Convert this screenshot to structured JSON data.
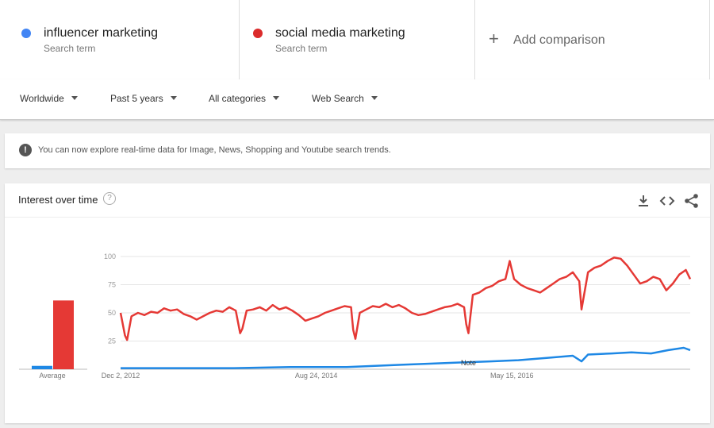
{
  "terms": [
    {
      "name": "influencer marketing",
      "sub": "Search term",
      "color": "#4285f4"
    },
    {
      "name": "social media marketing",
      "sub": "Search term",
      "color": "#db2b2b"
    }
  ],
  "add_comparison": "Add comparison",
  "filters": [
    "Worldwide",
    "Past 5 years",
    "All categories",
    "Web Search"
  ],
  "notice": "You can now explore real-time data for Image, News, Shopping and Youtube search trends.",
  "card": {
    "title": "Interest over time",
    "help": "?"
  },
  "icons": [
    "download-icon",
    "embed-icon",
    "share-icon",
    "help-icon",
    "info-icon",
    "plus-icon"
  ],
  "chart_data": {
    "type": "line",
    "ylim": [
      0,
      100
    ],
    "yticks": [
      "100",
      "75",
      "50",
      "25"
    ],
    "xticks": [
      "Dec 2, 2012",
      "Aug 24, 2014",
      "May 15, 2016"
    ],
    "average_label": "Average",
    "note_label": "Note",
    "averages": [
      {
        "name": "influencer marketing",
        "value": 3
      },
      {
        "name": "social media marketing",
        "value": 61
      }
    ],
    "series": [
      {
        "name": "social media marketing",
        "color": "#e53935",
        "points": [
          [
            "2012-12-02",
            50
          ],
          [
            "2012-12-16",
            30
          ],
          [
            "2012-12-23",
            26
          ],
          [
            "2013-01-06",
            47
          ],
          [
            "2013-01-27",
            50
          ],
          [
            "2013-02-17",
            48
          ],
          [
            "2013-03-10",
            51
          ],
          [
            "2013-03-31",
            50
          ],
          [
            "2013-04-21",
            54
          ],
          [
            "2013-05-12",
            52
          ],
          [
            "2013-06-02",
            53
          ],
          [
            "2013-06-23",
            49
          ],
          [
            "2013-07-14",
            47
          ],
          [
            "2013-08-04",
            44
          ],
          [
            "2013-08-25",
            47
          ],
          [
            "2013-09-15",
            50
          ],
          [
            "2013-10-06",
            52
          ],
          [
            "2013-10-27",
            51
          ],
          [
            "2013-11-17",
            55
          ],
          [
            "2013-12-08",
            52
          ],
          [
            "2013-12-22",
            32
          ],
          [
            "2013-12-29",
            36
          ],
          [
            "2014-01-12",
            52
          ],
          [
            "2014-02-02",
            53
          ],
          [
            "2014-02-23",
            55
          ],
          [
            "2014-03-16",
            52
          ],
          [
            "2014-04-06",
            57
          ],
          [
            "2014-04-27",
            53
          ],
          [
            "2014-05-18",
            55
          ],
          [
            "2014-06-08",
            52
          ],
          [
            "2014-06-29",
            48
          ],
          [
            "2014-07-20",
            43
          ],
          [
            "2014-08-10",
            45
          ],
          [
            "2014-08-31",
            47
          ],
          [
            "2014-09-21",
            50
          ],
          [
            "2014-10-12",
            52
          ],
          [
            "2014-11-02",
            54
          ],
          [
            "2014-11-23",
            56
          ],
          [
            "2014-12-14",
            55
          ],
          [
            "2014-12-21",
            35
          ],
          [
            "2014-12-28",
            27
          ],
          [
            "2015-01-11",
            50
          ],
          [
            "2015-02-01",
            53
          ],
          [
            "2015-02-22",
            56
          ],
          [
            "2015-03-15",
            55
          ],
          [
            "2015-04-05",
            58
          ],
          [
            "2015-04-26",
            55
          ],
          [
            "2015-05-17",
            57
          ],
          [
            "2015-06-07",
            54
          ],
          [
            "2015-06-28",
            50
          ],
          [
            "2015-07-19",
            48
          ],
          [
            "2015-08-09",
            49
          ],
          [
            "2015-08-30",
            51
          ],
          [
            "2015-09-20",
            53
          ],
          [
            "2015-10-11",
            55
          ],
          [
            "2015-11-01",
            56
          ],
          [
            "2015-11-22",
            58
          ],
          [
            "2015-12-13",
            55
          ],
          [
            "2015-12-20",
            40
          ],
          [
            "2015-12-27",
            32
          ],
          [
            "2016-01-10",
            66
          ],
          [
            "2016-01-31",
            68
          ],
          [
            "2016-02-21",
            72
          ],
          [
            "2016-03-13",
            74
          ],
          [
            "2016-04-03",
            78
          ],
          [
            "2016-04-24",
            80
          ],
          [
            "2016-05-08",
            96
          ],
          [
            "2016-05-22",
            80
          ],
          [
            "2016-06-12",
            75
          ],
          [
            "2016-07-03",
            72
          ],
          [
            "2016-07-24",
            70
          ],
          [
            "2016-08-14",
            68
          ],
          [
            "2016-09-04",
            72
          ],
          [
            "2016-09-25",
            76
          ],
          [
            "2016-10-16",
            80
          ],
          [
            "2016-11-06",
            82
          ],
          [
            "2016-11-27",
            86
          ],
          [
            "2016-12-18",
            78
          ],
          [
            "2016-12-25",
            53
          ],
          [
            "2017-01-15",
            86
          ],
          [
            "2017-02-05",
            90
          ],
          [
            "2017-02-26",
            92
          ],
          [
            "2017-03-19",
            96
          ],
          [
            "2017-04-09",
            99
          ],
          [
            "2017-04-30",
            98
          ],
          [
            "2017-05-21",
            92
          ],
          [
            "2017-06-11",
            84
          ],
          [
            "2017-07-02",
            76
          ],
          [
            "2017-07-23",
            78
          ],
          [
            "2017-08-13",
            82
          ],
          [
            "2017-09-03",
            80
          ],
          [
            "2017-09-24",
            70
          ],
          [
            "2017-10-15",
            76
          ],
          [
            "2017-11-05",
            84
          ],
          [
            "2017-11-26",
            88
          ],
          [
            "2017-12-10",
            80
          ]
        ]
      },
      {
        "name": "influencer marketing",
        "color": "#1e88e5",
        "points": [
          [
            "2012-12-02",
            1
          ],
          [
            "2013-06-02",
            1
          ],
          [
            "2013-12-01",
            1
          ],
          [
            "2014-06-01",
            2
          ],
          [
            "2014-11-30",
            2
          ],
          [
            "2015-03-01",
            3
          ],
          [
            "2015-06-01",
            4
          ],
          [
            "2015-09-01",
            5
          ],
          [
            "2015-11-29",
            6
          ],
          [
            "2016-03-06",
            7
          ],
          [
            "2016-06-05",
            8
          ],
          [
            "2016-09-04",
            10
          ],
          [
            "2016-11-27",
            12
          ],
          [
            "2016-12-25",
            7
          ],
          [
            "2017-01-15",
            13
          ],
          [
            "2017-04-02",
            14
          ],
          [
            "2017-06-04",
            15
          ],
          [
            "2017-08-06",
            14
          ],
          [
            "2017-10-01",
            17
          ],
          [
            "2017-11-19",
            19
          ],
          [
            "2017-12-10",
            17
          ]
        ]
      }
    ]
  }
}
